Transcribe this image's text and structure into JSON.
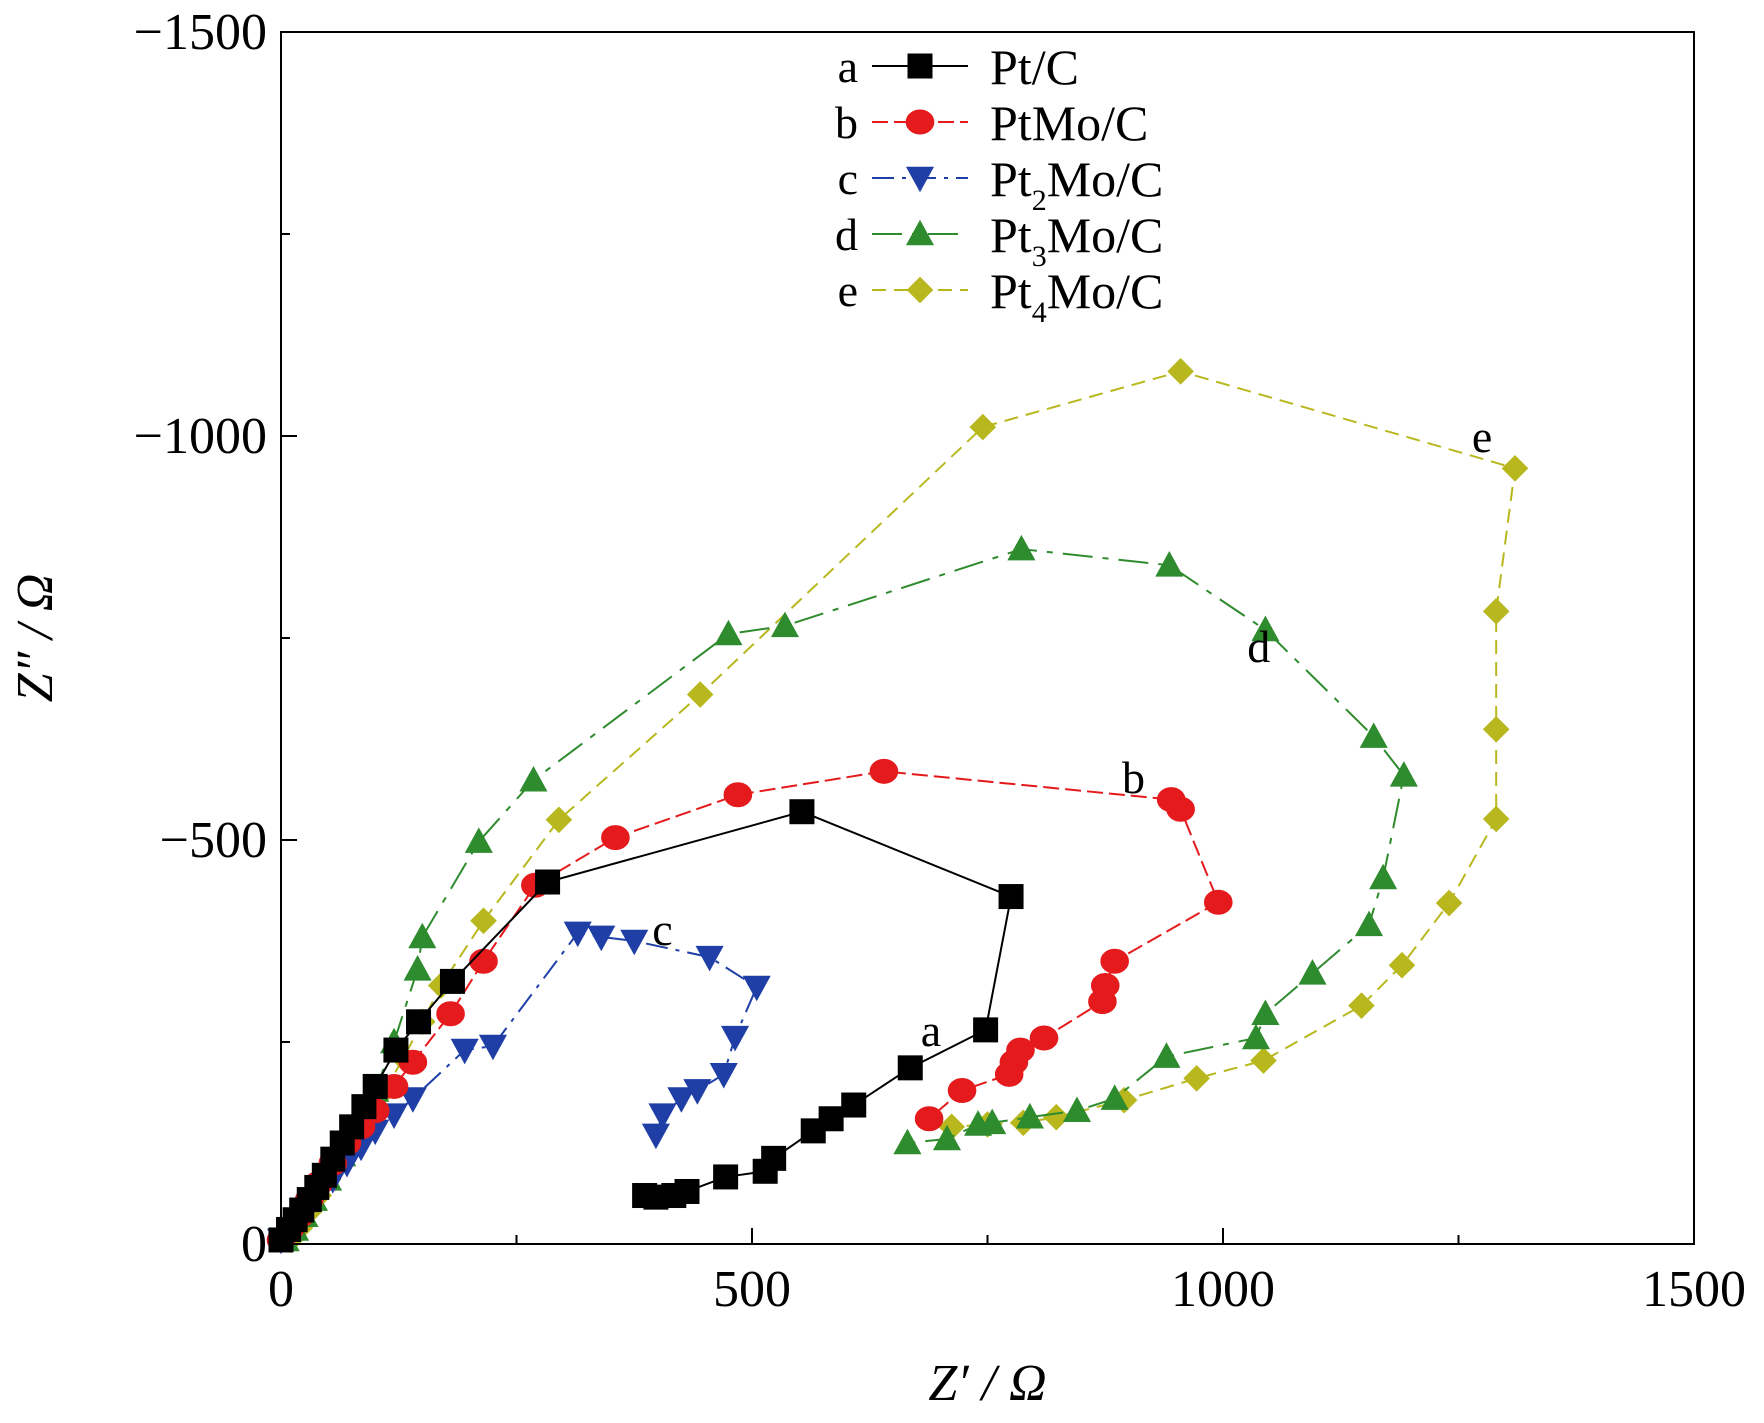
{
  "chart_data": {
    "type": "scatter",
    "xlabel": "Z′ / Ω",
    "ylabel": "Z″ / Ω",
    "xlim": [
      0,
      1500
    ],
    "ylim": [
      0,
      -1500
    ],
    "x_ticks": [
      "0",
      "500",
      "1000",
      "1500"
    ],
    "y_ticks": [
      "0",
      "−500",
      "−1000",
      "−1500"
    ],
    "grid": false,
    "legend_position": "top-center",
    "series": [
      {
        "letter": "a",
        "label_main": "Pt/C",
        "label_sub": "",
        "label_tail": "",
        "color": "#000000",
        "marker": "square",
        "dash": "",
        "curve_label": "a",
        "curve_label_at": [
          690,
          -265
        ],
        "x": [
          0,
          8,
          15,
          22,
          30,
          38,
          46,
          55,
          65,
          75,
          88,
          100,
          122,
          146,
          182,
          283,
          553,
          775,
          748,
          668,
          608,
          584,
          565,
          523,
          514,
          472,
          431,
          417,
          398,
          386
        ],
        "y": [
          -5,
          -18,
          -30,
          -42,
          -55,
          -70,
          -85,
          -105,
          -125,
          -145,
          -170,
          -195,
          -240,
          -275,
          -325,
          -448,
          -535,
          -430,
          -265,
          -218,
          -172,
          -155,
          -140,
          -106,
          -90,
          -83,
          -65,
          -60,
          -58,
          -60
        ]
      },
      {
        "letter": "b",
        "label_main": "PtMo/C",
        "label_sub": "",
        "label_tail": "",
        "color": "#e41a1c",
        "marker": "circle",
        "dash": "16 6",
        "curve_label": "b",
        "curve_label_at": [
          905,
          -578
        ],
        "x": [
          0,
          10,
          20,
          30,
          40,
          55,
          70,
          85,
          100,
          120,
          140,
          180,
          215,
          270,
          355,
          485,
          640,
          945,
          955,
          995,
          885,
          875,
          872,
          810,
          785,
          778,
          773,
          723,
          688
        ],
        "y": [
          -5,
          -20,
          -35,
          -55,
          -75,
          -100,
          -125,
          -145,
          -165,
          -195,
          -225,
          -285,
          -350,
          -444,
          -503,
          -556,
          -585,
          -550,
          -538,
          -423,
          -350,
          -320,
          -300,
          -255,
          -240,
          -225,
          -210,
          -190,
          -155
        ]
      },
      {
        "letter": "c",
        "label_main": "Pt",
        "label_sub": "2",
        "label_tail": "Mo/C",
        "color": "#1f3fa6",
        "marker": "triangle-down",
        "dash": "22 8 4 8",
        "curve_label": "c",
        "curve_label_at": [
          405,
          -390
        ],
        "x": [
          0,
          10,
          20,
          30,
          40,
          55,
          70,
          85,
          100,
          120,
          140,
          195,
          225,
          315,
          340,
          375,
          455,
          505,
          482,
          470,
          442,
          425,
          405,
          398
        ],
        "y": [
          -5,
          -18,
          -30,
          -45,
          -60,
          -80,
          -100,
          -120,
          -140,
          -160,
          -180,
          -240,
          -245,
          -385,
          -380,
          -375,
          -355,
          -318,
          -256,
          -210,
          -190,
          -180,
          -160,
          -135
        ]
      },
      {
        "letter": "d",
        "label_main": "Pt",
        "label_sub": "3",
        "label_tail": "Mo/C",
        "color": "#2e8b2e",
        "marker": "triangle-up",
        "dash": "30 10 6 10",
        "curve_label": "d",
        "curve_label_at": [
          1038,
          -740
        ],
        "x": [
          5,
          15,
          25,
          35,
          50,
          65,
          80,
          100,
          120,
          145,
          150,
          210,
          268,
          475,
          535,
          786,
          943,
          1045,
          1160,
          1192,
          1170,
          1155,
          1095,
          1045,
          1035,
          940,
          885,
          845,
          795,
          755,
          740,
          707,
          665
        ],
        "y": [
          -5,
          -18,
          -35,
          -55,
          -80,
          -110,
          -140,
          -190,
          -250,
          -340,
          -380,
          -498,
          -574,
          -755,
          -765,
          -860,
          -840,
          -760,
          -628,
          -580,
          -453,
          -395,
          -335,
          -285,
          -255,
          -232,
          -180,
          -165,
          -157,
          -150,
          -148,
          -130,
          -125
        ]
      },
      {
        "letter": "e",
        "label_main": "Pt",
        "label_sub": "4",
        "label_tail": "Mo/C",
        "color": "#b8b81e",
        "marker": "diamond",
        "dash": "14 8",
        "curve_label": "e",
        "curve_label_at": [
          1275,
          -1000
        ],
        "x": [
          10,
          20,
          30,
          40,
          50,
          60,
          75,
          90,
          110,
          130,
          150,
          170,
          215,
          295,
          445,
          745,
          955,
          1310,
          1290,
          1290,
          1290,
          1240,
          1190,
          1147,
          1043,
          972,
          895,
          823,
          788,
          750,
          712
        ],
        "y": [
          -5,
          -20,
          -40,
          -60,
          -80,
          -100,
          -130,
          -155,
          -190,
          -230,
          -275,
          -320,
          -400,
          -525,
          -680,
          -1011,
          -1080,
          -960,
          -783,
          -637,
          -526,
          -422,
          -345,
          -295,
          -227,
          -205,
          -178,
          -157,
          -150,
          -148,
          -145
        ]
      }
    ]
  }
}
